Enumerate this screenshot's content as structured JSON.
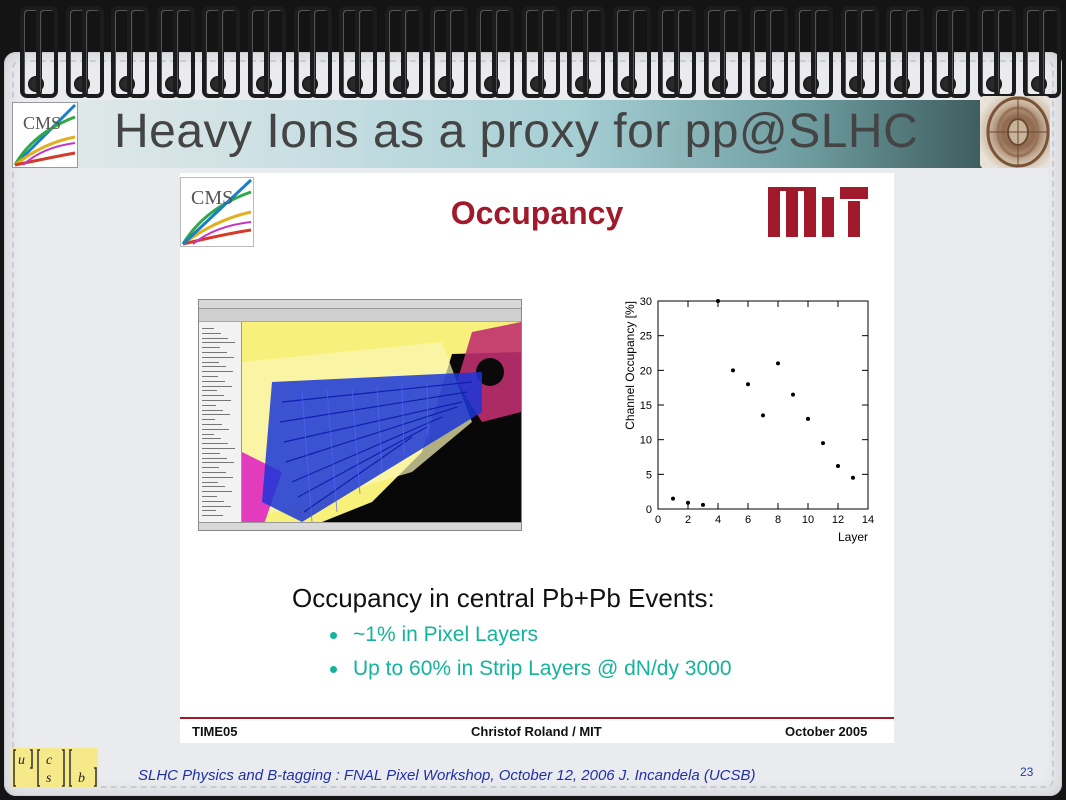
{
  "slide": {
    "title": "Heavy Ions as a proxy for pp@SLHC",
    "page_number": "23",
    "caption": "SLHC Physics and B-tagging : FNAL Pixel Workshop, October 12, 2006   J. Incandela (UCSB)"
  },
  "logos": {
    "cms_text": "CMS",
    "ucsb_letters": [
      "u",
      "c",
      "s",
      "b"
    ]
  },
  "inner": {
    "heading": "Occupancy",
    "occupancy_heading": "Occupancy in central Pb+Pb Events:",
    "bullets": [
      "~1% in Pixel Layers",
      "Up to 60% in Strip Layers @ dN/dy 3000"
    ],
    "footer": {
      "left": "TIME05",
      "center": "Christof Roland / MIT",
      "right": "October 2005"
    }
  },
  "colors": {
    "heading": "#a11a2c",
    "bullet": "#14b39a",
    "caption": "#1f2fa8"
  },
  "chart_data": {
    "type": "scatter",
    "xlabel": "Layer",
    "ylabel": "Channel Occupancy [%]",
    "xlim": [
      0,
      14
    ],
    "ylim": [
      0,
      30
    ],
    "xticks": [
      0,
      2,
      4,
      6,
      8,
      10,
      12,
      14
    ],
    "yticks": [
      0,
      5,
      10,
      15,
      20,
      25,
      30
    ],
    "points": [
      {
        "x": 1,
        "y": 1.5
      },
      {
        "x": 2,
        "y": 0.9
      },
      {
        "x": 3,
        "y": 0.6
      },
      {
        "x": 4,
        "y": 30
      },
      {
        "x": 5,
        "y": 20
      },
      {
        "x": 6,
        "y": 18
      },
      {
        "x": 7,
        "y": 13.5
      },
      {
        "x": 8,
        "y": 21
      },
      {
        "x": 9,
        "y": 16.5
      },
      {
        "x": 10,
        "y": 13
      },
      {
        "x": 11,
        "y": 9.5
      },
      {
        "x": 12,
        "y": 6.2
      },
      {
        "x": 13,
        "y": 4.5
      }
    ]
  }
}
